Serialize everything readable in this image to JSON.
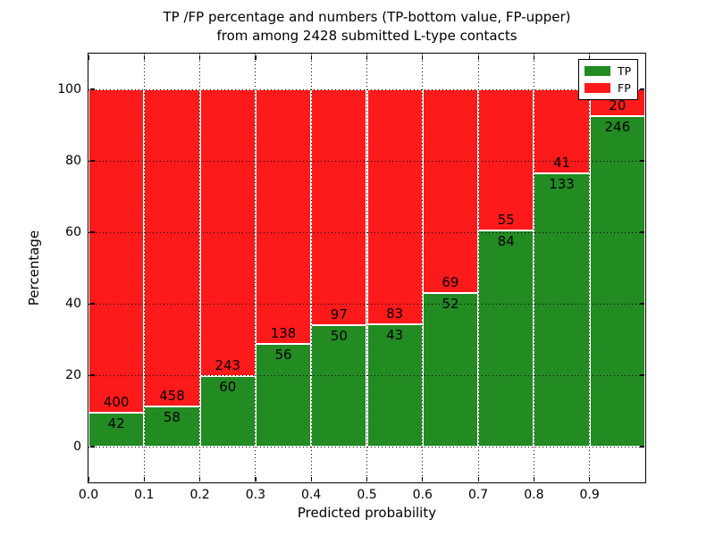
{
  "title": {
    "line1": "TP /FP percentage and numbers (TP-bottom value, FP-upper)",
    "line2": "from among 2428 submitted L-type contacts"
  },
  "axes": {
    "xlabel": "Predicted probability",
    "ylabel": "Percentage"
  },
  "legend": {
    "items": [
      {
        "label": "TP",
        "color": "#228b22"
      },
      {
        "label": "FP",
        "color": "#fd1a1a"
      }
    ]
  },
  "chart_data": {
    "type": "bar",
    "stacked": true,
    "normalized_to_percent": true,
    "title": "TP /FP percentage and numbers (TP-bottom value, FP-upper) from among 2428 submitted L-type contacts",
    "xlabel": "Predicted probability",
    "ylabel": "Percentage",
    "bin_start": [
      0.0,
      0.1,
      0.2,
      0.3,
      0.4,
      0.5,
      0.6,
      0.7,
      0.8,
      0.9
    ],
    "bin_width": 0.1,
    "series": [
      {
        "name": "TP",
        "color": "#228b22",
        "values": [
          42,
          58,
          60,
          56,
          50,
          43,
          52,
          84,
          133,
          246
        ]
      },
      {
        "name": "FP",
        "color": "#fd1a1a",
        "values": [
          400,
          458,
          243,
          138,
          97,
          83,
          69,
          55,
          41,
          20
        ]
      }
    ],
    "xlim": [
      0.0,
      1.0
    ],
    "ylim": [
      -10,
      110
    ],
    "xtick_labels": [
      "0.0",
      "0.1",
      "0.2",
      "0.3",
      "0.4",
      "0.5",
      "0.6",
      "0.7",
      "0.8",
      "0.9"
    ],
    "ytick_labels": [
      "0",
      "20",
      "40",
      "60",
      "80",
      "100"
    ],
    "yticks": [
      0,
      20,
      40,
      60,
      80,
      100
    ],
    "grid": "dotted",
    "grid_color": "#000000",
    "bar_edge_color": "#ffffff",
    "legend_position": "upper right"
  }
}
